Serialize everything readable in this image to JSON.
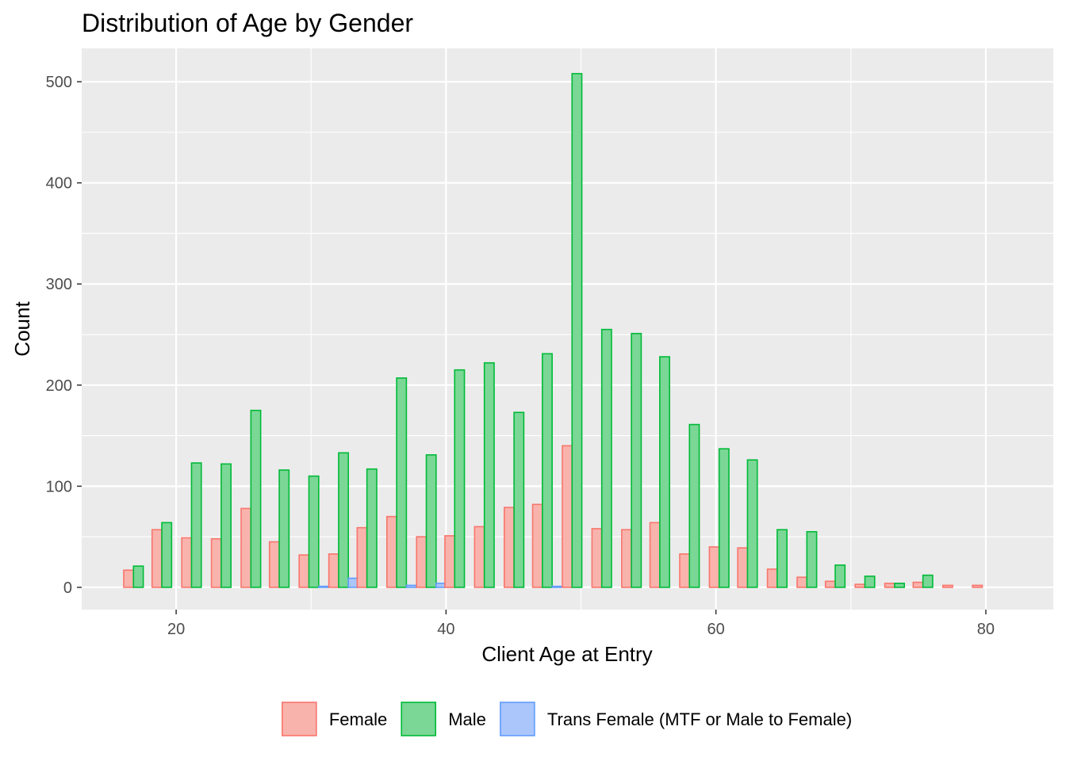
{
  "chart_data": {
    "type": "bar",
    "title": "Distribution of Age by Gender",
    "xlabel": "Client Age at Entry",
    "ylabel": "Count",
    "xlim": [
      13,
      85
    ],
    "ylim": [
      -22,
      533
    ],
    "xticks": [
      20,
      40,
      60,
      80
    ],
    "yticks": [
      0,
      100,
      200,
      300,
      400,
      500
    ],
    "bin_width": 2.17,
    "grid": true,
    "legend_position": "bottom",
    "bin_centers": [
      17.2,
      19.3,
      21.5,
      23.7,
      25.9,
      28.0,
      30.2,
      32.4,
      34.5,
      36.7,
      38.9,
      41.0,
      43.2,
      45.4,
      47.5,
      49.7,
      51.9,
      54.1,
      56.2,
      58.4,
      60.6,
      62.7,
      64.9,
      67.1,
      69.2,
      71.4,
      73.6,
      75.7,
      77.9,
      80.1
    ],
    "series": [
      {
        "name": "Female",
        "fill": "#F8B3AC",
        "stroke": "#F8766D",
        "values": [
          17,
          57,
          49,
          48,
          78,
          45,
          32,
          33,
          59,
          70,
          50,
          51,
          60,
          79,
          82,
          140,
          58,
          57,
          64,
          33,
          40,
          39,
          18,
          10,
          6,
          3,
          4,
          5,
          2,
          2
        ]
      },
      {
        "name": "Male",
        "fill": "#7AD795",
        "stroke": "#00BA38",
        "values": [
          21,
          64,
          123,
          122,
          175,
          116,
          110,
          133,
          117,
          207,
          131,
          215,
          222,
          173,
          231,
          508,
          255,
          251,
          228,
          161,
          137,
          126,
          57,
          55,
          22,
          11,
          4,
          12,
          0,
          0
        ]
      },
      {
        "name": "Trans Female (MTF or Male to Female)",
        "fill": "#AAC6FB",
        "stroke": "#619CFF",
        "values": [
          0,
          0,
          0,
          0,
          0,
          0,
          1,
          9,
          0,
          2,
          4,
          0,
          0,
          0,
          1,
          0,
          0,
          0,
          0,
          0,
          0,
          0,
          0,
          0,
          0,
          0,
          0,
          0,
          0,
          0
        ]
      }
    ]
  }
}
